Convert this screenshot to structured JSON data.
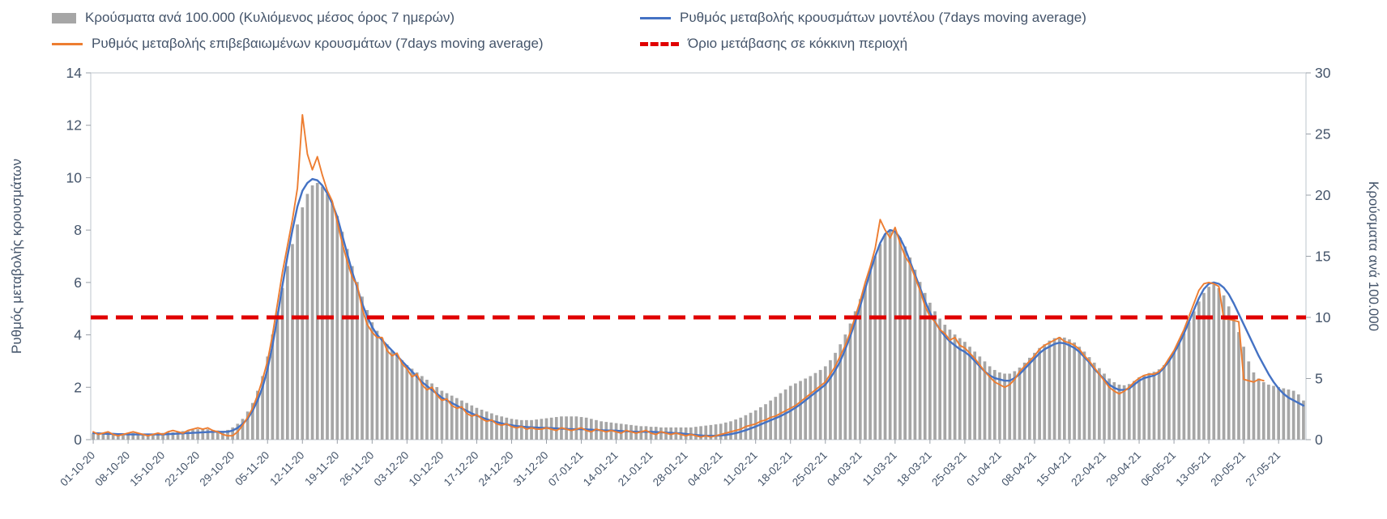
{
  "theme": {
    "axis_text_color": "#44546a",
    "plot_border_color": "#c9ced4",
    "tick_color": "#9aa0a8",
    "background": "#ffffff"
  },
  "chart_data": {
    "type": "bar+line combo",
    "title": "",
    "legend_position": "top",
    "grid": false,
    "left_axis": {
      "label": "Ρυθμός μεταβολής κρουσμάτων",
      "min": 0,
      "max": 14,
      "ticks": [
        0,
        2,
        4,
        6,
        8,
        10,
        12,
        14
      ]
    },
    "right_axis": {
      "label": "Κρούσματα ανά 100.000",
      "min": 0,
      "max": 30,
      "ticks": [
        0,
        5,
        10,
        15,
        20,
        25,
        30
      ]
    },
    "x_axis": {
      "tick_every": 7,
      "tick_labels": [
        "01-10-20",
        "08-10-20",
        "15-10-20",
        "22-10-20",
        "29-10-20",
        "05-11-20",
        "12-11-20",
        "19-11-20",
        "26-11-20",
        "03-12-20",
        "10-12-20",
        "17-12-20",
        "24-12-20",
        "31-12-20",
        "07-01-21",
        "14-01-21",
        "21-01-21",
        "28-01-21",
        "04-02-21",
        "11-02-21",
        "18-02-21",
        "25-02-21",
        "04-03-21",
        "11-03-21",
        "18-03-21",
        "25-03-21",
        "01-04-21",
        "08-04-21",
        "15-04-21",
        "22-04-21",
        "29-04-21",
        "06-05-21",
        "13-05-21",
        "20-05-21",
        "27-05-21"
      ]
    },
    "series": [
      {
        "name": "Κρούσματα ανά 100.000 (Κυλιόμενος μέσος όρος 7 ημερών)",
        "type": "bar",
        "axis": "right",
        "color": "#a6a6a6",
        "values": [
          0.5,
          0.45,
          0.5,
          0.55,
          0.5,
          0.45,
          0.5,
          0.5,
          0.55,
          0.5,
          0.45,
          0.5,
          0.5,
          0.55,
          0.55,
          0.6,
          0.6,
          0.65,
          0.7,
          0.75,
          0.8,
          0.85,
          0.9,
          0.85,
          0.8,
          0.75,
          0.7,
          0.8,
          1.0,
          1.3,
          1.7,
          2.3,
          3.0,
          4.0,
          5.2,
          6.8,
          8.6,
          10.5,
          12.4,
          14.2,
          16.0,
          17.6,
          19.0,
          20.1,
          20.8,
          21.0,
          20.7,
          20.1,
          19.3,
          18.3,
          17.0,
          15.6,
          14.2,
          12.9,
          11.7,
          10.6,
          9.6,
          8.9,
          8.3,
          7.8,
          7.3,
          6.9,
          6.5,
          6.1,
          5.8,
          5.5,
          5.2,
          4.9,
          4.6,
          4.3,
          4.0,
          3.8,
          3.6,
          3.4,
          3.2,
          3.0,
          2.8,
          2.6,
          2.45,
          2.3,
          2.15,
          2.0,
          1.9,
          1.8,
          1.7,
          1.65,
          1.6,
          1.6,
          1.6,
          1.65,
          1.7,
          1.75,
          1.8,
          1.85,
          1.9,
          1.9,
          1.9,
          1.9,
          1.85,
          1.8,
          1.7,
          1.6,
          1.5,
          1.45,
          1.4,
          1.35,
          1.3,
          1.25,
          1.2,
          1.15,
          1.1,
          1.1,
          1.05,
          1.05,
          1.0,
          1.0,
          1.0,
          1.0,
          1.0,
          1.0,
          1.0,
          1.05,
          1.1,
          1.15,
          1.2,
          1.25,
          1.3,
          1.4,
          1.5,
          1.65,
          1.8,
          2.0,
          2.2,
          2.4,
          2.65,
          2.9,
          3.2,
          3.5,
          3.8,
          4.1,
          4.4,
          4.6,
          4.8,
          5.0,
          5.2,
          5.45,
          5.7,
          6.0,
          6.5,
          7.1,
          7.8,
          8.6,
          9.5,
          10.5,
          11.5,
          12.6,
          13.8,
          15.0,
          16.0,
          16.8,
          17.2,
          17.0,
          16.5,
          15.8,
          14.9,
          13.9,
          12.9,
          12.0,
          11.2,
          10.5,
          9.9,
          9.4,
          9.0,
          8.6,
          8.3,
          8.0,
          7.6,
          7.2,
          6.8,
          6.4,
          6.0,
          5.7,
          5.5,
          5.4,
          5.4,
          5.6,
          5.9,
          6.3,
          6.7,
          7.1,
          7.5,
          7.8,
          8.1,
          8.3,
          8.4,
          8.35,
          8.2,
          7.95,
          7.6,
          7.2,
          6.75,
          6.3,
          5.85,
          5.4,
          5.0,
          4.7,
          4.5,
          4.45,
          4.55,
          4.8,
          5.1,
          5.3,
          5.45,
          5.55,
          5.75,
          6.1,
          6.6,
          7.2,
          7.9,
          8.7,
          9.6,
          10.5,
          11.3,
          12.0,
          12.5,
          12.7,
          12.4,
          11.8,
          10.9,
          9.9,
          8.8,
          7.6,
          6.4,
          5.5,
          5.0,
          4.7,
          4.5,
          4.4,
          4.3,
          4.2,
          4.1,
          4.0,
          3.7,
          3.2
        ]
      },
      {
        "name": "Ρυθμός μεταβολής κρουσμάτων μοντέλου (7days moving average)",
        "type": "line",
        "axis": "left",
        "color": "#4472c4",
        "values": [
          0.25,
          0.24,
          0.23,
          0.22,
          0.22,
          0.21,
          0.21,
          0.2,
          0.2,
          0.2,
          0.2,
          0.2,
          0.2,
          0.2,
          0.2,
          0.21,
          0.22,
          0.23,
          0.24,
          0.25,
          0.26,
          0.27,
          0.28,
          0.29,
          0.3,
          0.3,
          0.3,
          0.3,
          0.35,
          0.45,
          0.6,
          0.8,
          1.1,
          1.5,
          2.0,
          2.7,
          3.6,
          4.7,
          5.9,
          7.0,
          8.0,
          8.9,
          9.5,
          9.8,
          9.95,
          9.9,
          9.7,
          9.4,
          9.0,
          8.5,
          7.8,
          7.1,
          6.4,
          5.8,
          5.2,
          4.7,
          4.3,
          4.0,
          3.8,
          3.6,
          3.4,
          3.2,
          3.0,
          2.8,
          2.6,
          2.4,
          2.2,
          2.05,
          1.9,
          1.75,
          1.6,
          1.5,
          1.4,
          1.3,
          1.2,
          1.1,
          1.0,
          0.92,
          0.85,
          0.78,
          0.72,
          0.67,
          0.62,
          0.58,
          0.55,
          0.52,
          0.5,
          0.48,
          0.47,
          0.46,
          0.45,
          0.45,
          0.44,
          0.43,
          0.42,
          0.41,
          0.4,
          0.4,
          0.4,
          0.39,
          0.38,
          0.37,
          0.36,
          0.35,
          0.35,
          0.34,
          0.33,
          0.32,
          0.31,
          0.3,
          0.3,
          0.3,
          0.3,
          0.29,
          0.28,
          0.27,
          0.26,
          0.25,
          0.24,
          0.22,
          0.2,
          0.18,
          0.16,
          0.15,
          0.15,
          0.15,
          0.16,
          0.18,
          0.21,
          0.25,
          0.3,
          0.36,
          0.43,
          0.5,
          0.58,
          0.66,
          0.74,
          0.82,
          0.9,
          1.0,
          1.1,
          1.22,
          1.35,
          1.5,
          1.65,
          1.8,
          1.95,
          2.1,
          2.35,
          2.65,
          3.0,
          3.45,
          3.95,
          4.5,
          5.1,
          5.75,
          6.4,
          7.0,
          7.5,
          7.85,
          8.0,
          7.95,
          7.7,
          7.3,
          6.8,
          6.3,
          5.8,
          5.3,
          4.85,
          4.5,
          4.2,
          3.95,
          3.75,
          3.6,
          3.45,
          3.35,
          3.2,
          3.0,
          2.8,
          2.6,
          2.45,
          2.35,
          2.3,
          2.25,
          2.25,
          2.35,
          2.5,
          2.7,
          2.9,
          3.1,
          3.3,
          3.45,
          3.55,
          3.65,
          3.7,
          3.68,
          3.6,
          3.5,
          3.35,
          3.15,
          2.95,
          2.7,
          2.5,
          2.3,
          2.1,
          1.98,
          1.9,
          1.9,
          1.95,
          2.1,
          2.25,
          2.35,
          2.4,
          2.45,
          2.55,
          2.75,
          3.0,
          3.3,
          3.65,
          4.05,
          4.5,
          4.95,
          5.4,
          5.75,
          5.95,
          6.0,
          5.95,
          5.8,
          5.55,
          5.2,
          4.8,
          4.4,
          4.0,
          3.6,
          3.2,
          2.85,
          2.5,
          2.2,
          1.95,
          1.75,
          1.6,
          1.5,
          1.4,
          1.3
        ]
      },
      {
        "name": "Ρυθμός μεταβολής επιβεβαιωμένων κρουσμάτων (7days moving average)",
        "type": "line",
        "axis": "left",
        "color": "#ed7d31",
        "values": [
          0.3,
          0.2,
          0.25,
          0.3,
          0.2,
          0.15,
          0.2,
          0.25,
          0.3,
          0.25,
          0.2,
          0.15,
          0.2,
          0.25,
          0.2,
          0.3,
          0.35,
          0.3,
          0.25,
          0.35,
          0.4,
          0.45,
          0.4,
          0.45,
          0.35,
          0.3,
          0.2,
          0.15,
          0.15,
          0.3,
          0.55,
          0.85,
          1.2,
          1.7,
          2.3,
          3.0,
          4.0,
          5.2,
          6.4,
          7.4,
          8.4,
          9.6,
          12.4,
          10.9,
          10.3,
          10.8,
          10.1,
          9.5,
          9.1,
          8.3,
          7.5,
          6.8,
          6.2,
          5.9,
          5.0,
          4.4,
          4.1,
          3.9,
          3.9,
          3.4,
          3.2,
          3.3,
          2.9,
          2.7,
          2.4,
          2.5,
          2.1,
          1.9,
          2.0,
          1.7,
          1.5,
          1.55,
          1.3,
          1.2,
          1.25,
          1.0,
          0.9,
          0.95,
          0.8,
          0.7,
          0.75,
          0.6,
          0.55,
          0.6,
          0.5,
          0.45,
          0.5,
          0.4,
          0.45,
          0.4,
          0.4,
          0.45,
          0.4,
          0.35,
          0.45,
          0.4,
          0.35,
          0.4,
          0.45,
          0.35,
          0.3,
          0.4,
          0.35,
          0.3,
          0.35,
          0.3,
          0.25,
          0.35,
          0.3,
          0.25,
          0.3,
          0.35,
          0.25,
          0.2,
          0.3,
          0.25,
          0.2,
          0.25,
          0.2,
          0.15,
          0.2,
          0.15,
          0.1,
          0.15,
          0.1,
          0.15,
          0.2,
          0.25,
          0.3,
          0.35,
          0.4,
          0.5,
          0.55,
          0.6,
          0.7,
          0.75,
          0.85,
          0.9,
          1.0,
          1.1,
          1.2,
          1.3,
          1.45,
          1.6,
          1.75,
          1.9,
          2.05,
          2.2,
          2.5,
          2.8,
          3.2,
          3.6,
          4.1,
          4.7,
          5.3,
          6.0,
          6.6,
          7.3,
          8.4,
          8.0,
          7.7,
          8.1,
          7.5,
          7.0,
          6.7,
          6.2,
          5.7,
          5.1,
          4.7,
          4.5,
          4.2,
          4.05,
          3.8,
          3.9,
          3.6,
          3.5,
          3.3,
          3.1,
          2.85,
          2.6,
          2.4,
          2.2,
          2.1,
          2.0,
          2.1,
          2.3,
          2.6,
          2.8,
          3.0,
          3.2,
          3.45,
          3.6,
          3.7,
          3.8,
          3.9,
          3.75,
          3.7,
          3.6,
          3.45,
          3.2,
          3.0,
          2.75,
          2.5,
          2.25,
          2.0,
          1.85,
          1.75,
          1.85,
          2.0,
          2.2,
          2.35,
          2.45,
          2.5,
          2.5,
          2.6,
          2.8,
          3.1,
          3.4,
          3.8,
          4.2,
          4.7,
          5.2,
          5.7,
          5.95,
          6.0,
          5.95,
          5.85,
          4.6,
          4.6,
          4.55,
          4.5,
          2.3,
          2.25,
          2.2,
          2.3,
          2.25,
          null,
          null,
          null,
          null,
          null,
          null,
          null,
          null
        ]
      },
      {
        "name": "Όριο μετάβασης σε κόκκινη περιοχή",
        "type": "threshold",
        "axis": "right",
        "color": "#e00000",
        "style": "dashed",
        "value": 10
      }
    ]
  }
}
